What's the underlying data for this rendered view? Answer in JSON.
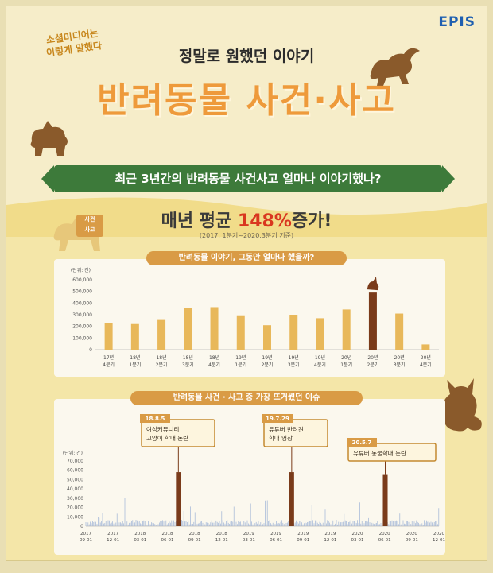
{
  "brand": "EPIS",
  "intro_tag": [
    "소셜미디어는",
    "이렇게 말했다"
  ],
  "subtitle": "정말로 원했던 이야기",
  "title": "반려동물 사건·사고",
  "banner": "최근 3년간의 반려동물 사건사고 얼마나 이야기했나?",
  "headline_pre": "매년 평균 ",
  "headline_pct": "148%",
  "headline_post": "증가!",
  "period": "(2017. 1분기~2020.3분기 기준)",
  "side_note": [
    "사건",
    "사고"
  ],
  "colors": {
    "bar": "#e8b85a",
    "highlight": "#7a3b1a",
    "accent": "#ee9a3b",
    "banner": "#3d7a3a",
    "line": "#9fb3d6"
  },
  "chart_data": [
    {
      "type": "bar",
      "title": "반려동물 이야기, 그동안 얼마나 했을까?",
      "ylabel": "(단위: 건)",
      "ylim": [
        0,
        600000
      ],
      "yticks": [
        "0",
        "100,000",
        "200,000",
        "300,000",
        "400,000",
        "500,000",
        "600,000"
      ],
      "categories": [
        [
          "17년",
          "4분기"
        ],
        [
          "18년",
          "1분기"
        ],
        [
          "18년",
          "2분기"
        ],
        [
          "18년",
          "3분기"
        ],
        [
          "18년",
          "4분기"
        ],
        [
          "19년",
          "1분기"
        ],
        [
          "19년",
          "2분기"
        ],
        [
          "19년",
          "3분기"
        ],
        [
          "19년",
          "4분기"
        ],
        [
          "20년",
          "1분기"
        ],
        [
          "20년",
          "2분기"
        ],
        [
          "20년",
          "3분기"
        ],
        [
          "20년",
          "4분기"
        ]
      ],
      "values": [
        225000,
        220000,
        255000,
        355000,
        365000,
        295000,
        210000,
        300000,
        270000,
        345000,
        490000,
        310000,
        45000
      ],
      "highlight_index": 10
    },
    {
      "type": "line",
      "title": "반려동물 사건 · 사고 중 가장 뜨거웠던 이슈",
      "ylabel": "(단위: 건)",
      "ylim": [
        0,
        70000
      ],
      "yticks": [
        "0",
        "10,000",
        "20,000",
        "30,000",
        "40,000",
        "50,000",
        "60,000",
        "70,000"
      ],
      "xticks": [
        [
          "2017",
          "09-01"
        ],
        [
          "2017",
          "12-01"
        ],
        [
          "2018",
          "03-01"
        ],
        [
          "2018",
          "06-01"
        ],
        [
          "2018",
          "09-01"
        ],
        [
          "2018",
          "12-01"
        ],
        [
          "2019",
          "03-01"
        ],
        [
          "2019",
          "06-01"
        ],
        [
          "2019",
          "09-01"
        ],
        [
          "2019",
          "12-01"
        ],
        [
          "2020",
          "03-01"
        ],
        [
          "2020",
          "06-01"
        ],
        [
          "2020",
          "09-01"
        ],
        [
          "2020",
          "12-01"
        ]
      ],
      "events": [
        {
          "date": "18.8.5",
          "lines": [
            "여성커뮤니티",
            "고양이 학대 논란"
          ],
          "value": 58000,
          "pos": 0.262
        },
        {
          "date": "19.7.29",
          "lines": [
            "유튜버 반려견",
            "학대 영상"
          ],
          "value": 58000,
          "pos": 0.583
        },
        {
          "date": "20.5.7",
          "lines": [
            "유튜버 동물학대 논란"
          ],
          "value": 55000,
          "pos": 0.848
        }
      ]
    }
  ]
}
